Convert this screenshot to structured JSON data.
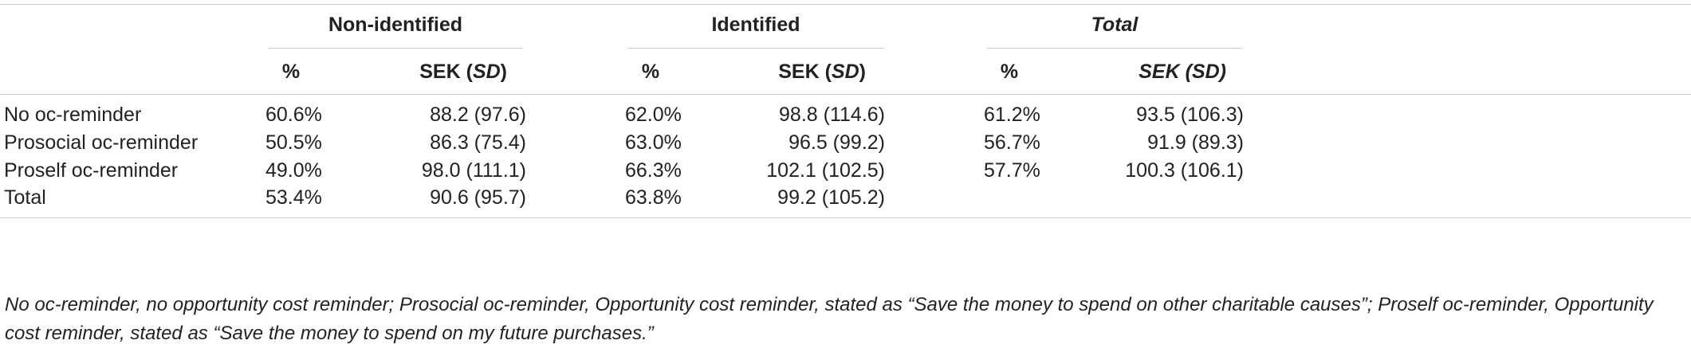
{
  "table": {
    "groups": [
      "Non-identified",
      "Identified",
      "Total"
    ],
    "subheaders": {
      "pct": "%",
      "sek_prefix": "SEK (",
      "sek_italic": "SD",
      "sek_suffix": ")"
    },
    "rows": [
      {
        "label": "No oc-reminder",
        "cells": [
          "60.6%",
          "88.2 (97.6)",
          "62.0%",
          "98.8 (114.6)",
          "61.2%",
          "93.5 (106.3)"
        ]
      },
      {
        "label": "Prosocial oc-reminder",
        "cells": [
          "50.5%",
          "86.3 (75.4)",
          "63.0%",
          "96.5 (99.2)",
          "56.7%",
          "91.9 (89.3)"
        ]
      },
      {
        "label": "Proself oc-reminder",
        "cells": [
          "49.0%",
          "98.0 (111.1)",
          "66.3%",
          "102.1 (102.5)",
          "57.7%",
          "100.3 (106.1)"
        ]
      },
      {
        "label": "Total",
        "cells": [
          "53.4%",
          "90.6 (95.7)",
          "63.8%",
          "99.2 (105.2)",
          "",
          ""
        ]
      }
    ],
    "footnote": "No oc-reminder, no opportunity cost reminder; Prosocial oc-reminder, Opportunity cost reminder, stated as “Save the money to spend on other charitable causes”; Proself oc-reminder, Opportunity cost reminder, stated as “Save the money to spend on my future purchases.”"
  }
}
